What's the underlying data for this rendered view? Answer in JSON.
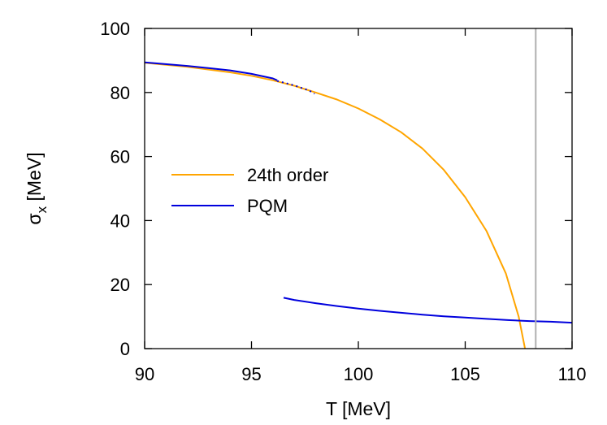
{
  "chart_data": {
    "type": "line",
    "title": "",
    "xlabel": "T [MeV]",
    "ylabel_main": "σ",
    "ylabel_sub": "x",
    "ylabel_unit": " [MeV]",
    "xlim": [
      90,
      110
    ],
    "ylim": [
      0,
      100
    ],
    "xticks": [
      90,
      95,
      100,
      105,
      110
    ],
    "yticks": [
      0,
      20,
      40,
      60,
      80,
      100
    ],
    "grid": false,
    "legend_placement": "middle-left",
    "vline": {
      "x": 108.3,
      "color": "#b0b0b0"
    },
    "series": [
      {
        "name": "24th order",
        "color": "#ffa500",
        "x": [
          90,
          92,
          94,
          95,
          96,
          97,
          98,
          99,
          100,
          101,
          102,
          103,
          104,
          105,
          106,
          106.9,
          107.5,
          107.8
        ],
        "y": [
          89.3,
          88.0,
          86.3,
          85.2,
          83.8,
          82.1,
          80.0,
          77.8,
          75.0,
          71.6,
          67.6,
          62.5,
          55.8,
          47.3,
          36.7,
          23.5,
          10.0,
          0.0
        ]
      },
      {
        "name": "PQM",
        "color": "#0000dd",
        "x": [
          90,
          92,
          94,
          95,
          96,
          96.2
        ],
        "y": [
          89.4,
          88.3,
          86.9,
          85.8,
          84.4,
          83.8
        ],
        "dotted": {
          "x": [
            96.2,
            96.5,
            96.8,
            97.1,
            97.4,
            97.7,
            97.95
          ],
          "y": [
            83.6,
            83.1,
            82.6,
            82.0,
            81.3,
            80.6,
            79.6
          ]
        },
        "lower": {
          "x": [
            96.5,
            97,
            98,
            99,
            100,
            101,
            102,
            103,
            104,
            105,
            106,
            107,
            108,
            109,
            110
          ],
          "y": [
            15.9,
            15.2,
            14.2,
            13.3,
            12.5,
            11.8,
            11.2,
            10.6,
            10.1,
            9.7,
            9.3,
            8.9,
            8.6,
            8.4,
            8.1
          ]
        }
      }
    ]
  }
}
